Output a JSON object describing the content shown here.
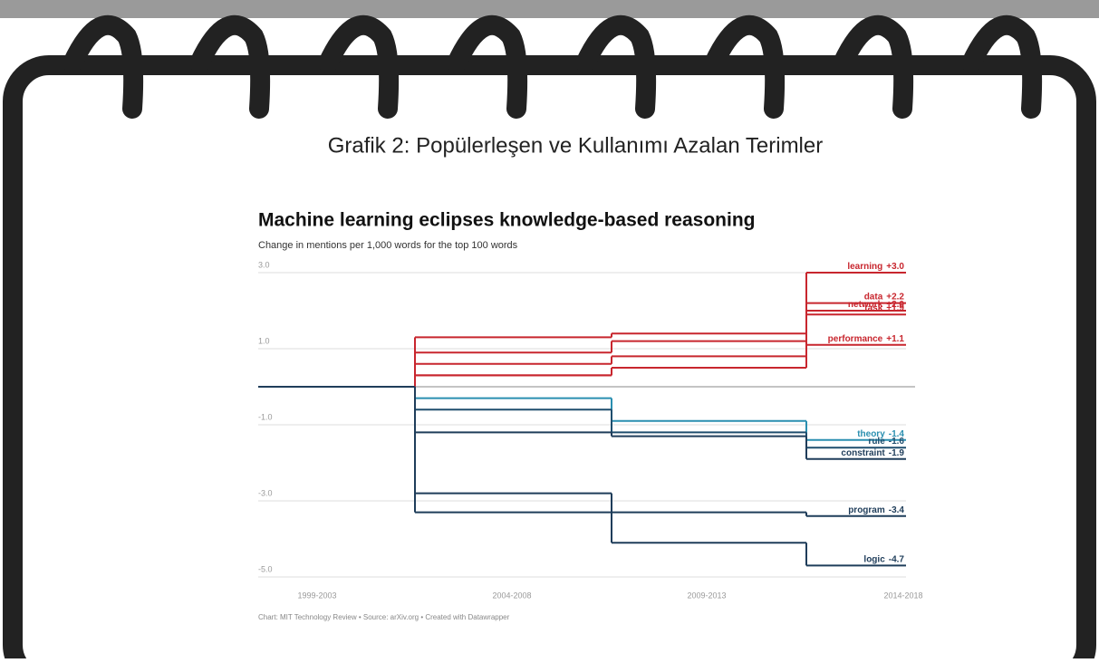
{
  "caption": "Grafik 2: Popülerleşen ve Kullanımı Azalan Terimler",
  "chart_data": {
    "type": "step",
    "title": "Machine learning eclipses knowledge-based reasoning",
    "subtitle": "Change in mentions per 1,000 words for the top 100 words",
    "source": "Chart: MIT Technology Review • Source: arXiv.org • Created with Datawrapper",
    "categories": [
      "1999-2003",
      "2004-2008",
      "2009-2013",
      "2014-2018"
    ],
    "ylim": [
      -5,
      3
    ],
    "yticks": [
      {
        "value": 3,
        "label": "3.0"
      },
      {
        "value": 1,
        "label": "1.0"
      },
      {
        "value": -1,
        "label": "-1.0"
      },
      {
        "value": -3,
        "label": "-3.0"
      },
      {
        "value": -5,
        "label": "-5.0"
      }
    ],
    "grid": true,
    "series": [
      {
        "name": "learning",
        "color": "#c8262e",
        "values": [
          0,
          1.3,
          1.4,
          3.0
        ],
        "value_label": "+3.0"
      },
      {
        "name": "data",
        "color": "#c8262e",
        "values": [
          0,
          0.6,
          0.8,
          2.2
        ],
        "value_label": "+2.2"
      },
      {
        "name": "network",
        "color": "#c8262e",
        "values": [
          0,
          0.9,
          1.2,
          2.0
        ],
        "value_label": "+2.0"
      },
      {
        "name": "task",
        "color": "#c8262e",
        "values": [
          0,
          0.3,
          0.5,
          1.9
        ],
        "value_label": "+1.9"
      },
      {
        "name": "performance",
        "color": "#c8262e",
        "values": [
          0,
          0.3,
          0.5,
          1.1
        ],
        "value_label": "+1.1"
      },
      {
        "name": "theory",
        "color": "#2a8fb0",
        "values": [
          0,
          -0.3,
          -0.9,
          -1.4
        ],
        "value_label": "-1.4"
      },
      {
        "name": "rule",
        "color": "#1f4e6e",
        "values": [
          0,
          -0.6,
          -1.2,
          -1.6
        ],
        "value_label": "-1.6"
      },
      {
        "name": "constraint",
        "color": "#1f3d5a",
        "values": [
          0,
          -1.2,
          -1.3,
          -1.9
        ],
        "value_label": "-1.9"
      },
      {
        "name": "program",
        "color": "#1f3d5a",
        "values": [
          0,
          -2.8,
          -3.3,
          -3.4
        ],
        "value_label": "-3.4"
      },
      {
        "name": "logic",
        "color": "#1f3d5a",
        "values": [
          0,
          -3.3,
          -4.1,
          -4.7
        ],
        "value_label": "-4.7"
      }
    ]
  }
}
